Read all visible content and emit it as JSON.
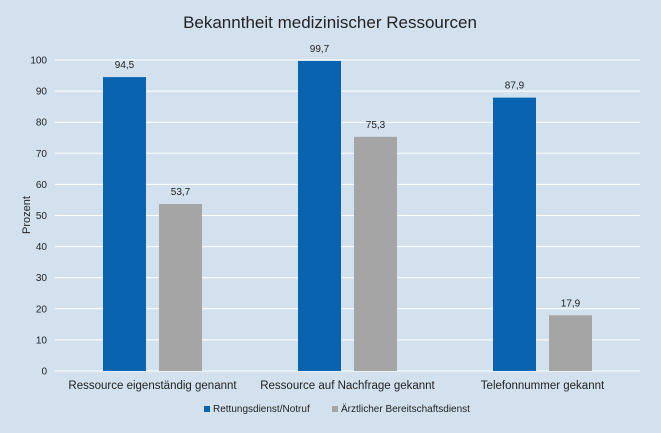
{
  "chart_data": {
    "type": "bar",
    "title": "Bekanntheit medizinischer Ressourcen",
    "xlabel": "",
    "ylabel": "Prozent",
    "categories": [
      "Ressource eigenständig genannt",
      "Ressource auf Nachfrage gekannt",
      "Telefonnummer gekannt"
    ],
    "series": [
      {
        "name": "Rettungsdienst/Notruf",
        "values": [
          94.5,
          99.7,
          87.9
        ],
        "labels": [
          "94,5",
          "99,7",
          "87,9"
        ],
        "color": "#0a63b0"
      },
      {
        "name": "Ärztlicher Bereitschaftsdienst",
        "values": [
          53.7,
          75.3,
          17.9
        ],
        "labels": [
          "53,7",
          "75,3",
          "17,9"
        ],
        "color": "#a5a5a5"
      }
    ],
    "ylim": [
      0,
      100
    ],
    "yticks": [
      "0",
      "10",
      "20",
      "30",
      "40",
      "50",
      "60",
      "70",
      "80",
      "90",
      "100"
    ],
    "grid": true,
    "legend_position": "bottom"
  }
}
